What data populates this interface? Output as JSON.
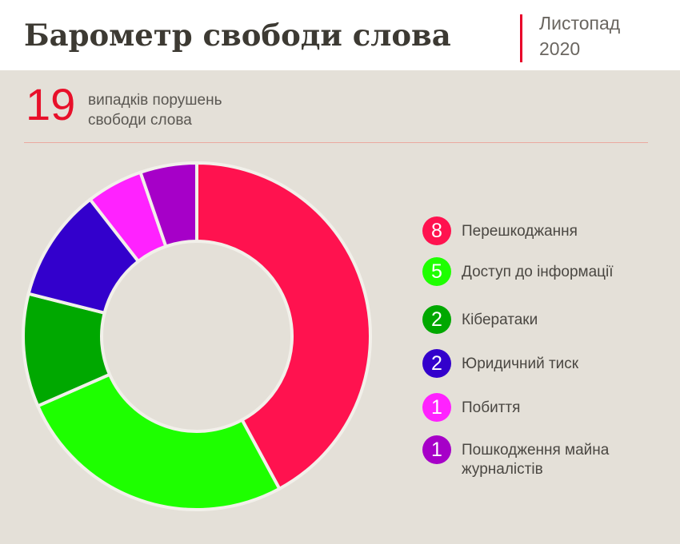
{
  "chart_data": {
    "type": "pie",
    "title": "Барометр свободи слова",
    "period_month": "Листопад",
    "period_year": "2020",
    "total": 19,
    "total_label": "випадків порушень свободи слова",
    "categories": [
      "Перешкоджання",
      "Доступ до інформації",
      "Кібератаки",
      "Юридичний тиск",
      "Побиття",
      "Пошкодження майна журналістів"
    ],
    "values": [
      8,
      5,
      2,
      2,
      1,
      1
    ],
    "colors": [
      "#ff124f",
      "#1eff00",
      "#00a800",
      "#3300cc",
      "#ff22ff",
      "#a600c8"
    ]
  }
}
